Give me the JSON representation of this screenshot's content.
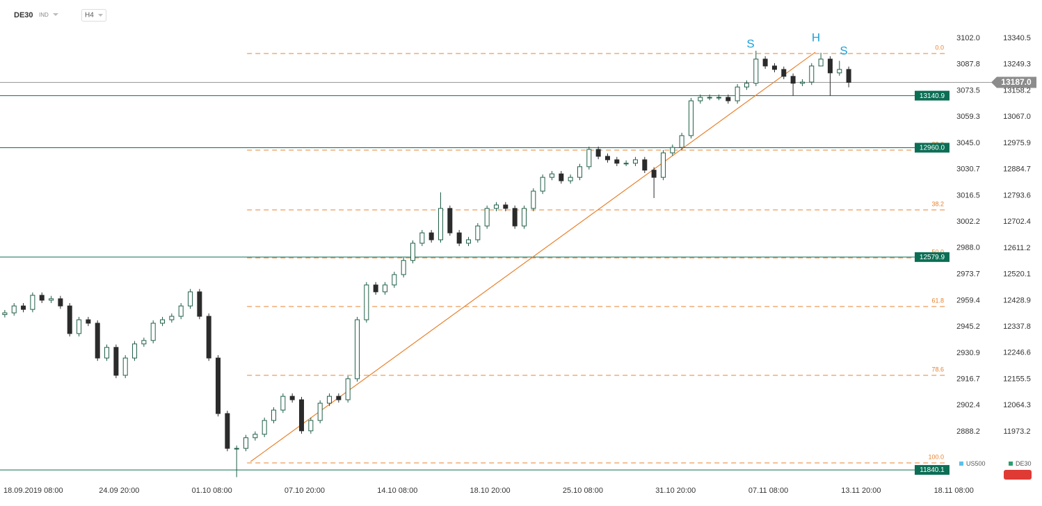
{
  "header": {
    "symbol": "DE30",
    "tag": "IND",
    "interval": "H4"
  },
  "chart_data": {
    "type": "candlestick",
    "x": [
      -7,
      -4,
      -1,
      2,
      5,
      8,
      11,
      14,
      17,
      20,
      23,
      26,
      29,
      32,
      35,
      38,
      41,
      44,
      47,
      50,
      53,
      56,
      59,
      62,
      65,
      68,
      71,
      74,
      77,
      80,
      83,
      86,
      89,
      92,
      95,
      98,
      101,
      104,
      107,
      110,
      113,
      116,
      119,
      122,
      125,
      128,
      131,
      134,
      137,
      140,
      143,
      146,
      149,
      152,
      155,
      158,
      161,
      164,
      167,
      170,
      173,
      176,
      179,
      182,
      185,
      188,
      191,
      194,
      197,
      200,
      203,
      206,
      209,
      212,
      215,
      218,
      221,
      224,
      227,
      230,
      233,
      236,
      239,
      242,
      245,
      248,
      251,
      254,
      257,
      260,
      263,
      266
    ],
    "open": [
      12380,
      12386,
      12410,
      12398,
      12447,
      12430,
      12435,
      12410,
      12314,
      12362,
      12350,
      12229,
      12266,
      12169,
      12229,
      12278,
      12290,
      12350,
      12362,
      12374,
      12410,
      12459,
      12374,
      12229,
      12036,
      11915,
      11915,
      11952,
      11964,
      12012,
      12048,
      12096,
      12084,
      11976,
      12012,
      12072,
      12096,
      12084,
      12157,
      12362,
      12483,
      12459,
      12483,
      12519,
      12568,
      12628,
      12664,
      12640,
      12749,
      12664,
      12628,
      12640,
      12688,
      12749,
      12761,
      12749,
      12688,
      12749,
      12809,
      12857,
      12869,
      12845,
      12857,
      12894,
      12954,
      12930,
      12918,
      12906,
      12906,
      12918,
      12882,
      12857,
      12942,
      12961,
      13002,
      13123,
      13135,
      13135,
      13135,
      13123,
      13171,
      13184,
      13268,
      13244,
      13232,
      13208,
      13184,
      13188,
      13244,
      13268,
      13220,
      13232
    ],
    "high": [
      12396,
      12420,
      12420,
      12457,
      12457,
      12445,
      12445,
      12420,
      12372,
      12372,
      12360,
      12276,
      12276,
      12239,
      12288,
      12300,
      12360,
      12372,
      12384,
      12420,
      12469,
      12469,
      12384,
      12239,
      12046,
      11925,
      11962,
      11974,
      12022,
      12058,
      12106,
      12106,
      12094,
      12022,
      12082,
      12106,
      12106,
      12167,
      12372,
      12493,
      12493,
      12493,
      12529,
      12578,
      12638,
      12674,
      12674,
      12805,
      12759,
      12674,
      12650,
      12698,
      12759,
      12771,
      12771,
      12759,
      12759,
      12819,
      12867,
      12879,
      12879,
      12867,
      12904,
      12964,
      12964,
      12940,
      12928,
      12916,
      12928,
      12928,
      12892,
      12952,
      12971,
      13012,
      13133,
      13145,
      13145,
      13145,
      13145,
      13181,
      13194,
      13297,
      13278,
      13254,
      13242,
      13218,
      13198,
      13254,
      13290,
      13278,
      13262,
      13242
    ],
    "low": [
      12370,
      12376,
      12388,
      12388,
      12420,
      12420,
      12400,
      12304,
      12304,
      12340,
      12219,
      12219,
      12159,
      12159,
      12219,
      12268,
      12280,
      12340,
      12352,
      12364,
      12400,
      12364,
      12219,
      12026,
      11905,
      11815,
      11905,
      11942,
      11954,
      12002,
      12038,
      12074,
      11966,
      11966,
      12002,
      12062,
      12074,
      12074,
      12147,
      12352,
      12449,
      12449,
      12473,
      12509,
      12558,
      12618,
      12630,
      12630,
      12654,
      12618,
      12618,
      12630,
      12678,
      12739,
      12739,
      12678,
      12678,
      12739,
      12799,
      12847,
      12835,
      12835,
      12847,
      12884,
      12920,
      12908,
      12896,
      12896,
      12896,
      12872,
      12785,
      12847,
      12932,
      12951,
      12992,
      13113,
      13125,
      13125,
      13113,
      13113,
      13161,
      13174,
      13234,
      13222,
      13198,
      13140,
      13174,
      13178,
      13258,
      13140,
      13210,
      13170
    ],
    "close": [
      12386,
      12410,
      12398,
      12447,
      12430,
      12435,
      12410,
      12314,
      12362,
      12350,
      12229,
      12266,
      12169,
      12229,
      12278,
      12290,
      12350,
      12362,
      12374,
      12410,
      12459,
      12374,
      12229,
      12036,
      11915,
      11915,
      11952,
      11964,
      12012,
      12048,
      12096,
      12084,
      11976,
      12012,
      12072,
      12096,
      12084,
      12157,
      12362,
      12483,
      12459,
      12483,
      12519,
      12568,
      12628,
      12664,
      12640,
      12749,
      12664,
      12628,
      12640,
      12688,
      12749,
      12761,
      12749,
      12688,
      12749,
      12809,
      12857,
      12869,
      12845,
      12857,
      12894,
      12954,
      12930,
      12918,
      12906,
      12906,
      12918,
      12882,
      12857,
      12942,
      12961,
      13002,
      13123,
      13135,
      13135,
      13135,
      13123,
      13171,
      13184,
      13268,
      13244,
      13232,
      13208,
      13184,
      13188,
      13244,
      13268,
      13220,
      13232,
      13187
    ],
    "up_color": "#ffffff",
    "down_color": "#2b2b2b",
    "outline_color": "#1f5e46",
    "xlim": [
      -8.55,
      298.6
    ],
    "xticks": [
      {
        "value": 0,
        "label": "18.09.2019 08:00"
      },
      {
        "value": 30,
        "label": "24.09 20:00"
      },
      {
        "value": 60,
        "label": "01.10 08:00"
      },
      {
        "value": 90,
        "label": "07.10 20:00"
      },
      {
        "value": 120,
        "label": "14.10 08:00"
      },
      {
        "value": 150,
        "label": "18.10 20:00"
      },
      {
        "value": 180,
        "label": "25.10 08:00"
      },
      {
        "value": 210,
        "label": "31.10 20:00"
      },
      {
        "value": 240,
        "label": "07.11 08:00"
      },
      {
        "value": 270,
        "label": "13.11 20:00"
      },
      {
        "value": 300,
        "label": "18.11 08:00"
      }
    ],
    "ylim": [
      11806.5,
      13376.7
    ],
    "yticks": [
      13340.5,
      13249.3,
      13158.2,
      {
        "value": 13067.0,
        "label": "13067.0"
      },
      12975.9,
      12884.7,
      12793.6,
      12702.4,
      12611.2,
      12520.1,
      12428.9,
      12337.8,
      12246.6,
      12155.5,
      12064.3,
      11973.2
    ],
    "y2lim": [
      2862.1,
      3107.7
    ],
    "y2ticks": [
      {
        "value": 3102.0,
        "label": "3102.0"
      },
      3087.8,
      3073.5,
      3059.3,
      {
        "value": 3045.0,
        "label": "3045.0"
      },
      3030.7,
      3016.5,
      3002.2,
      {
        "value": 2988.0,
        "label": "2988.0"
      },
      2973.7,
      2959.4,
      2945.2,
      2930.9,
      2916.7,
      2902.4,
      2888.2
    ],
    "current_price": {
      "value": 13187.0,
      "label": "13187.0"
    },
    "levels": [
      {
        "value": 13140.9,
        "label": "13140.9"
      },
      {
        "value": 12960.0,
        "label": "12960.0"
      },
      {
        "value": 12579.9,
        "label": "12579.9"
      },
      {
        "value": 11840.1,
        "label": "11840.1"
      }
    ],
    "level_color": "#0b6e55",
    "fib_levels": [
      {
        "value": 13287.4,
        "label": "0.0"
      },
      {
        "value": 12951.6,
        "label": "23.6"
      },
      {
        "value": 12743.8,
        "label": "38.2"
      },
      {
        "value": 12577.1,
        "label": "50.0"
      },
      {
        "value": 12408.0,
        "label": "61.8"
      },
      {
        "value": 12168.9,
        "label": "78.6"
      },
      {
        "value": 11864.5,
        "label": "100.0"
      }
    ],
    "fib_color": "#e8822e",
    "trendline": {
      "x": [
        72.5,
        255.2
      ],
      "values": [
        11869,
        13292
      ]
    },
    "annotations": [
      "S",
      "H",
      "S"
    ],
    "annotation_color": "#1fa0d8",
    "legend": [
      {
        "name": "US500",
        "color": "#5bc0eb"
      },
      {
        "name": "DE30",
        "color": "#2e9e6e"
      }
    ]
  }
}
